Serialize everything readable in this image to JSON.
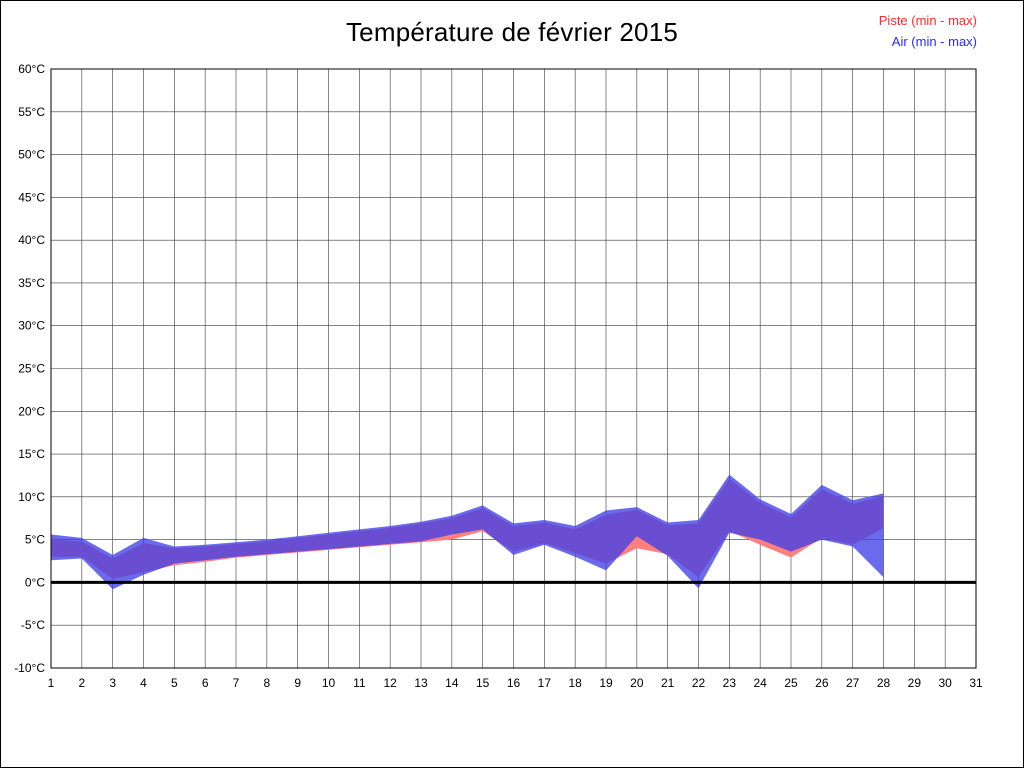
{
  "chart_data": {
    "type": "area",
    "title": "Température de février 2015",
    "legend": [
      {
        "label": "Piste (min - max)",
        "color": "#ff2a2a"
      },
      {
        "label": "Air (min - max)",
        "color": "#2a2aff"
      }
    ],
    "xlabel": "",
    "ylabel": "",
    "grid": true,
    "zero_line": 0,
    "xlim": [
      1,
      31
    ],
    "ylim": [
      -10,
      60
    ],
    "xticks": [
      1,
      2,
      3,
      4,
      5,
      6,
      7,
      8,
      9,
      10,
      11,
      12,
      13,
      14,
      15,
      16,
      17,
      18,
      19,
      20,
      21,
      22,
      23,
      24,
      25,
      26,
      27,
      28,
      29,
      30,
      31
    ],
    "xtick_labels": [
      "1",
      "2",
      "3",
      "4",
      "5",
      "6",
      "7",
      "8",
      "9",
      "10",
      "11",
      "12",
      "13",
      "14",
      "15",
      "16",
      "17",
      "18",
      "19",
      "20",
      "21",
      "22",
      "23",
      "24",
      "25",
      "26",
      "27",
      "28",
      "29",
      "30",
      "31"
    ],
    "yticks": [
      -10,
      -5,
      0,
      5,
      10,
      15,
      20,
      25,
      30,
      35,
      40,
      45,
      50,
      55,
      60
    ],
    "ytick_labels": [
      "-10°C",
      "-5°C",
      "0°C",
      "5°C",
      "10°C",
      "15°C",
      "20°C",
      "25°C",
      "30°C",
      "35°C",
      "40°C",
      "45°C",
      "50°C",
      "55°C",
      "60°C"
    ],
    "x": [
      1,
      2,
      3,
      4,
      5,
      6,
      7,
      8,
      9,
      10,
      11,
      12,
      13,
      14,
      15,
      16,
      17,
      18,
      19,
      20,
      21,
      22,
      23,
      24,
      25,
      26,
      27,
      28
    ],
    "series": [
      {
        "name": "Piste (min - max)",
        "band_name": "piste-band",
        "color": "#ff7f7f",
        "opacity": 1,
        "min": [
          3.0,
          3.0,
          0.4,
          1.2,
          2.0,
          2.4,
          2.9,
          3.2,
          3.5,
          3.8,
          4.1,
          4.4,
          4.7,
          5.0,
          6.0,
          3.6,
          4.6,
          3.4,
          2.2,
          4.0,
          3.3,
          0.6,
          6.0,
          4.4,
          2.9,
          5.2,
          4.4,
          6.4
        ],
        "max": [
          5.0,
          4.8,
          2.8,
          4.6,
          4.0,
          4.2,
          4.5,
          4.8,
          5.2,
          5.6,
          6.0,
          6.4,
          6.9,
          7.5,
          8.7,
          6.6,
          7.0,
          6.2,
          7.9,
          8.5,
          6.7,
          6.9,
          12.1,
          9.3,
          7.6,
          10.9,
          9.2,
          10.1
        ]
      },
      {
        "name": "Air (min - max)",
        "band_name": "air-band",
        "color": "#4040e8",
        "opacity": 0.78,
        "min": [
          2.6,
          2.8,
          -0.8,
          0.9,
          2.2,
          2.6,
          3.0,
          3.3,
          3.6,
          3.9,
          4.2,
          4.5,
          4.8,
          5.6,
          6.2,
          3.2,
          4.4,
          3.0,
          1.4,
          5.4,
          3.1,
          -0.7,
          5.8,
          5.0,
          3.6,
          5.0,
          4.2,
          0.6
        ],
        "max": [
          5.6,
          5.2,
          3.2,
          5.2,
          4.2,
          4.4,
          4.7,
          5.0,
          5.4,
          5.8,
          6.2,
          6.6,
          7.1,
          7.8,
          9.0,
          6.9,
          7.3,
          6.6,
          8.4,
          8.8,
          7.0,
          7.3,
          12.6,
          9.7,
          8.0,
          11.4,
          9.6,
          10.4
        ]
      }
    ]
  }
}
